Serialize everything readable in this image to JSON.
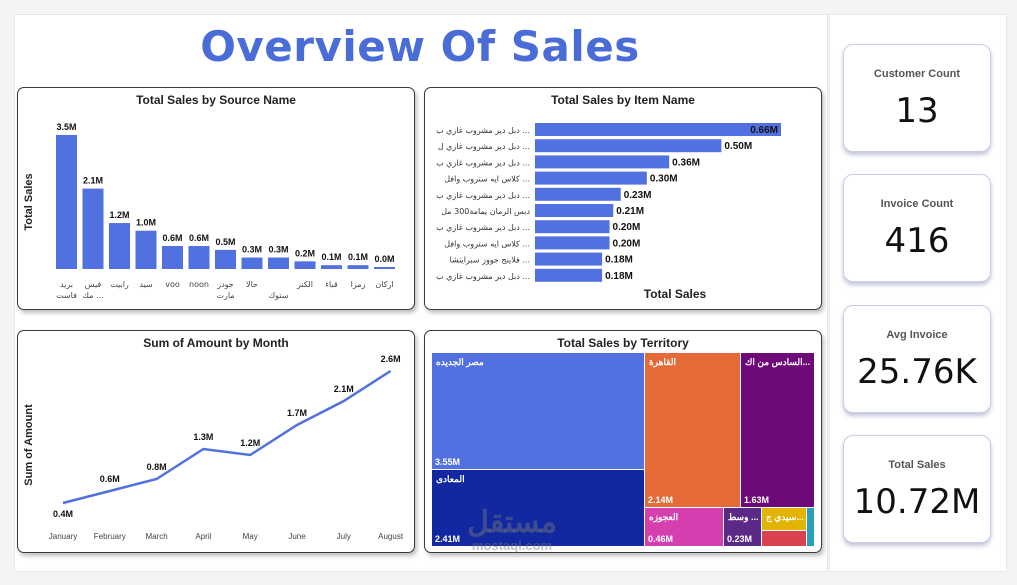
{
  "page": {
    "title": "Overview Of Sales"
  },
  "charts": {
    "source": {
      "title": "Total Sales by Source Name",
      "ylabel": "Total Sales",
      "categories": [
        "بريد فاست",
        "فيس بوك مك",
        "رابيت",
        "سيد",
        "voo",
        "noon",
        "جودز مارت",
        "حالا",
        "ستوك",
        "الكنز",
        "قباء",
        "زمزا",
        "اركان"
      ],
      "tick1": [
        "بريد",
        "فيس",
        "رابيت",
        "سيد",
        "voo",
        "noon",
        "جودز",
        "حالا",
        "",
        "الكنز",
        "قباء",
        "زمزا",
        "اركان"
      ],
      "tick2": [
        "فاست",
        "مك ...",
        "",
        "",
        "",
        "",
        "مارت",
        "",
        "ستوك",
        "",
        "",
        "",
        ""
      ],
      "labels": [
        "3.5M",
        "2.1M",
        "1.2M",
        "1.0M",
        "0.6M",
        "0.6M",
        "0.5M",
        "0.3M",
        "0.3M",
        "0.2M",
        "0.1M",
        "0.1M",
        "0.0M"
      ]
    },
    "item": {
      "title": "Total Sales by Item Name",
      "xlabel": "Total Sales",
      "categories": [
        "دبل دير مشروب غازي ب ...",
        "دبل دير مشروب غازي ل ...",
        "دبل دير مشروب غازي ب ...",
        "كلاس ايه ستروب وافل ...",
        "دبل دير مشروب غازي ب ...",
        "دبس الرمان يمامة300 مل",
        "دبل دير مشروب غازي ب ...",
        "كلاس ايه ستروب وافل ...",
        "فلاينج جووز سبرايتشا ...",
        "دبل دير مشروب غازي ب ..."
      ],
      "labels": [
        "0.66M",
        "0.50M",
        "0.36M",
        "0.30M",
        "0.23M",
        "0.21M",
        "0.20M",
        "0.20M",
        "0.18M",
        "0.18M"
      ]
    },
    "month": {
      "title": "Sum of Amount by Month",
      "ylabel": "Sum of Amount",
      "categories": [
        "January",
        "February",
        "March",
        "April",
        "May",
        "June",
        "July",
        "August"
      ],
      "labels": [
        "0.4M",
        "0.6M",
        "0.8M",
        "1.3M",
        "1.2M",
        "1.7M",
        "2.1M",
        "2.6M"
      ]
    },
    "territory": {
      "title": "Total Sales by Territory",
      "tiles": [
        {
          "name": "مصر الجديده",
          "value": "3.55M",
          "color": "#5271e0"
        },
        {
          "name": "المعادى",
          "value": "2.41M",
          "color": "#1228a0"
        },
        {
          "name": "القاهرة",
          "value": "2.14M",
          "color": "#e46a37"
        },
        {
          "name": "السادس من اك...",
          "value": "1.63M",
          "color": "#6e0a78"
        },
        {
          "name": "العجوزه",
          "value": "0.46M",
          "color": "#d63fb0"
        },
        {
          "name": "وسط ...",
          "value": "0.23M",
          "color": "#5b2a86"
        },
        {
          "name": "سيدي ج...",
          "value": "",
          "color": "#e2b300"
        },
        {
          "name": "",
          "value": "",
          "color": "#d9424d"
        },
        {
          "name": "",
          "value": "",
          "color": "#2aa0b7"
        }
      ]
    }
  },
  "chart_data": [
    {
      "type": "bar",
      "title": "Total Sales by Source Name",
      "xlabel": "",
      "ylabel": "Total Sales",
      "categories": [
        "بريد فاست",
        "فيس بوك مك",
        "رابيت",
        "سيد",
        "voo",
        "noon",
        "جودز مارت",
        "حالا",
        "ستوك",
        "الكنز",
        "قباء",
        "زمزا",
        "اركان"
      ],
      "values": [
        3.5,
        2.1,
        1.2,
        1.0,
        0.6,
        0.6,
        0.5,
        0.3,
        0.3,
        0.2,
        0.1,
        0.1,
        0.03
      ],
      "unit": "M",
      "ylim": [
        0,
        3.5
      ],
      "grid": false
    },
    {
      "type": "bar",
      "orientation": "horizontal",
      "title": "Total Sales by Item Name",
      "xlabel": "Total Sales",
      "categories": [
        "دبل دير مشروب غازي ب ...",
        "دبل دير مشروب غازي ل ...",
        "دبل دير مشروب غازي ب ...",
        "كلاس ايه ستروب وافل ...",
        "دبل دير مشروب غازي ب ...",
        "دبس الرمان يمامة300 مل",
        "دبل دير مشروب غازي ب ...",
        "كلاس ايه ستروب وافل ...",
        "فلاينج جووز سبرايتشا ...",
        "دبل دير مشروب غازي ب ..."
      ],
      "values": [
        0.66,
        0.5,
        0.36,
        0.3,
        0.23,
        0.21,
        0.2,
        0.2,
        0.18,
        0.18
      ],
      "unit": "M",
      "xlim": [
        0,
        0.66
      ],
      "grid": false
    },
    {
      "type": "line",
      "title": "Sum of Amount by Month",
      "xlabel": "",
      "ylabel": "Sum of Amount",
      "x": [
        "January",
        "February",
        "March",
        "April",
        "May",
        "June",
        "July",
        "August"
      ],
      "values": [
        0.4,
        0.6,
        0.8,
        1.3,
        1.2,
        1.7,
        2.1,
        2.6
      ],
      "unit": "M",
      "ylim": [
        0.4,
        2.6
      ],
      "grid": false
    },
    {
      "type": "treemap",
      "title": "Total Sales by Territory",
      "categories": [
        "مصر الجديده",
        "المعادى",
        "القاهرة",
        "السادس من اك...",
        "العجوزه",
        "وسط ...",
        "سيدي ج..."
      ],
      "values": [
        3.55,
        2.41,
        2.14,
        1.63,
        0.46,
        0.23,
        0.17
      ],
      "unit": "M"
    }
  ],
  "kpis": [
    {
      "label": "Customer Count",
      "value": "13"
    },
    {
      "label": "Invoice Count",
      "value": "416"
    },
    {
      "label": "Avg Invoice",
      "value": "25.76K"
    },
    {
      "label": "Total Sales",
      "value": "10.72M"
    }
  ],
  "watermark": {
    "logo": "مستقل",
    "url": "mostaql.com"
  },
  "colors": {
    "accent": "#4a6cd6",
    "bar": "#5271e0",
    "line": "#5271e0"
  }
}
